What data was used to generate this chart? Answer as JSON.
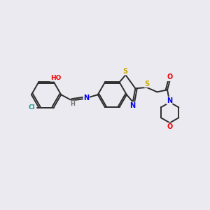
{
  "background_color": "#eaeaf0",
  "bond_color": "#2d2d2d",
  "atom_colors": {
    "C": "#2d2d2d",
    "N": "#0000ee",
    "O": "#ee0000",
    "S": "#ccaa00",
    "Cl": "#229988",
    "H": "#777777"
  },
  "figsize": [
    3.0,
    3.0
  ],
  "dpi": 100
}
